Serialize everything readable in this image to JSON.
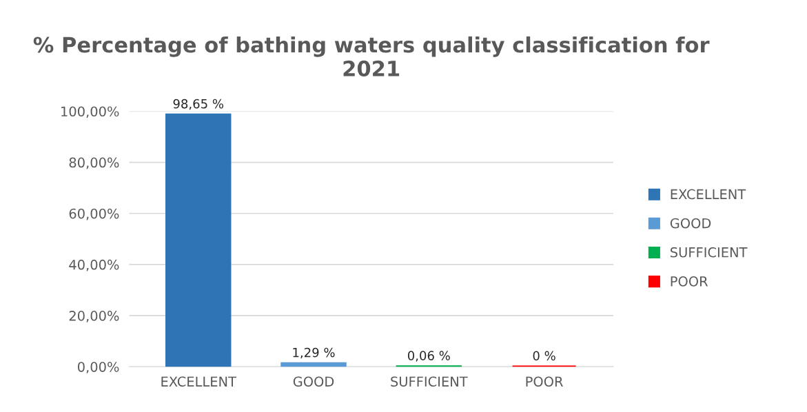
{
  "chart_data": {
    "type": "bar",
    "title": "% Percentage of bathing waters quality classification for 2021",
    "categories": [
      "EXCELLENT",
      "GOOD",
      "SUFFICIENT",
      "POOR"
    ],
    "series": [
      {
        "name": "EXCELLENT",
        "color": "#2e75b6",
        "values": [
          98.65,
          null,
          null,
          null
        ],
        "value_labels": [
          "98,65 %",
          null,
          null,
          null
        ]
      },
      {
        "name": "GOOD",
        "color": "#5b9bd5",
        "values": [
          null,
          1.29,
          null,
          null
        ],
        "value_labels": [
          null,
          "1,29 %",
          null,
          null
        ]
      },
      {
        "name": "SUFFICIENT",
        "color": "#00b050",
        "values": [
          null,
          null,
          0.06,
          null
        ],
        "value_labels": [
          null,
          null,
          "0,06 %",
          null
        ]
      },
      {
        "name": "POOR",
        "color": "#ff0000",
        "values": [
          null,
          null,
          null,
          0
        ],
        "value_labels": [
          null,
          null,
          null,
          "0 %"
        ]
      }
    ],
    "ylim": [
      0,
      100
    ],
    "yticks": [
      {
        "value": 0,
        "label": "0,00%"
      },
      {
        "value": 20,
        "label": "20,00%"
      },
      {
        "value": 40,
        "label": "40,00%"
      },
      {
        "value": 60,
        "label": "60,00%"
      },
      {
        "value": 80,
        "label": "80,00%"
      },
      {
        "value": 100,
        "label": "100,00%"
      }
    ],
    "grid": "y",
    "legend": "right"
  }
}
